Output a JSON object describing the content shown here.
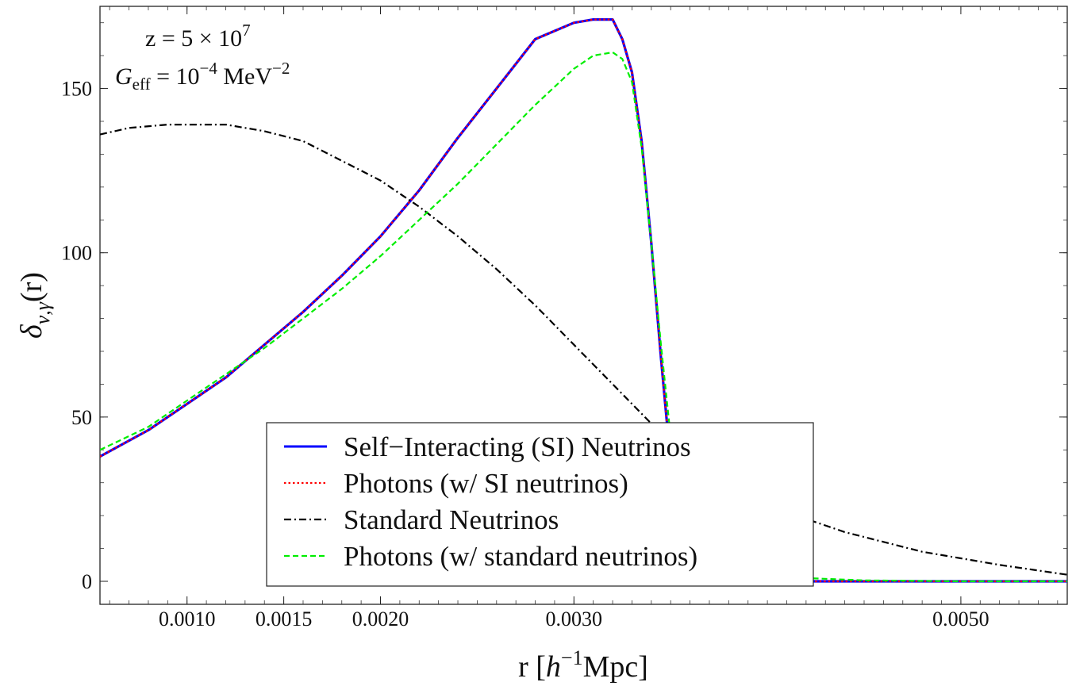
{
  "chart_data": {
    "type": "line",
    "xlabel": {
      "base": "r [",
      "italic": "h",
      "sup": "−1",
      "tail": "Mpc]"
    },
    "ylabel": {
      "main": "δ",
      "sub": "ν,γ",
      "tail": "(r)"
    },
    "xlim": [
      0.00055,
      0.00555
    ],
    "ylim": [
      -7,
      175
    ],
    "x_ticks": [
      {
        "value": 0.001,
        "label": "0.0010"
      },
      {
        "value": 0.0015,
        "label": "0.0015"
      },
      {
        "value": 0.002,
        "label": "0.0020"
      },
      {
        "value": 0.003,
        "label": "0.0030"
      },
      {
        "value": 0.005,
        "label": "0.0050"
      }
    ],
    "x_minor_step": 0.0001,
    "y_ticks": [
      {
        "value": 0,
        "label": "0"
      },
      {
        "value": 50,
        "label": "50"
      },
      {
        "value": 100,
        "label": "100"
      },
      {
        "value": 150,
        "label": "150"
      }
    ],
    "y_minor_step": 10,
    "annotations": {
      "line1": {
        "text": "z = 5 × 10",
        "sup": "7"
      },
      "line2": {
        "italic": "G",
        "sub": "eff",
        "text": " = 10",
        "sup": "−4",
        "tail": " MeV",
        "sup2": "−2"
      }
    },
    "legend_position": "bottom-center",
    "series": [
      {
        "name": "Self−Interacting (SI) Neutrinos",
        "color": "#0000ff",
        "style": "solid",
        "x": [
          0.00055,
          0.0008,
          0.001,
          0.0012,
          0.0014,
          0.0016,
          0.0018,
          0.002,
          0.0022,
          0.0024,
          0.0026,
          0.0028,
          0.003,
          0.0031,
          0.0032,
          0.00325,
          0.0033,
          0.00335,
          0.0034,
          0.00345,
          0.0035,
          0.00355,
          0.0036,
          0.00365,
          0.0037,
          0.0038,
          0.004,
          0.0045,
          0.005,
          0.00555
        ],
        "y": [
          38,
          46,
          54,
          62,
          72,
          82,
          93,
          105,
          119,
          135,
          150,
          165,
          170,
          171,
          171,
          165,
          155,
          134,
          103,
          68,
          36,
          15,
          5,
          1.5,
          0.3,
          0,
          0,
          0,
          0,
          0
        ]
      },
      {
        "name": "Photons (w/ SI neutrinos)",
        "color": "#ff0000",
        "style": "dotted",
        "x": [
          0.00055,
          0.0008,
          0.001,
          0.0012,
          0.0014,
          0.0016,
          0.0018,
          0.002,
          0.0022,
          0.0024,
          0.0026,
          0.0028,
          0.003,
          0.0031,
          0.0032,
          0.00325,
          0.0033,
          0.00335,
          0.0034,
          0.00345,
          0.0035,
          0.00355,
          0.0036,
          0.00365,
          0.0037,
          0.0038,
          0.004,
          0.0045,
          0.005,
          0.00555
        ],
        "y": [
          38,
          46,
          54,
          62,
          72,
          82,
          93,
          105,
          119,
          135,
          150,
          165,
          170,
          171,
          171,
          165,
          155,
          134,
          103,
          68,
          36,
          15,
          5,
          1.5,
          0.3,
          0,
          0,
          0,
          0,
          0
        ]
      },
      {
        "name": "Standard Neutrinos",
        "color": "#000000",
        "style": "dashdot",
        "x": [
          0.00055,
          0.0007,
          0.0009,
          0.00105,
          0.0012,
          0.0014,
          0.0016,
          0.0018,
          0.002,
          0.0022,
          0.0024,
          0.0026,
          0.0028,
          0.003,
          0.0032,
          0.0034,
          0.0036,
          0.0038,
          0.004,
          0.0042,
          0.0044,
          0.0046,
          0.0048,
          0.005,
          0.0052,
          0.00555
        ],
        "y": [
          136,
          138,
          139,
          139,
          139,
          137,
          134,
          128,
          122,
          114,
          105,
          95,
          84,
          72,
          60,
          48,
          38,
          30,
          24,
          19,
          15,
          12,
          9,
          7,
          5,
          2
        ]
      },
      {
        "name": "Photons (w/ standard neutrinos)",
        "color": "#00ee00",
        "style": "dashed",
        "x": [
          0.00055,
          0.0008,
          0.001,
          0.0012,
          0.0014,
          0.0016,
          0.0018,
          0.002,
          0.0022,
          0.0024,
          0.0026,
          0.0028,
          0.003,
          0.0031,
          0.0032,
          0.00325,
          0.0033,
          0.00335,
          0.0034,
          0.00345,
          0.0035,
          0.00355,
          0.0036,
          0.0037,
          0.0038,
          0.004,
          0.0042,
          0.0045,
          0.005,
          0.00555
        ],
        "y": [
          40,
          47,
          55,
          63,
          71,
          80,
          89,
          99,
          110,
          121,
          133,
          145,
          156,
          160,
          161,
          159,
          152,
          132,
          103,
          72,
          44,
          25,
          15,
          8,
          5,
          2.5,
          1,
          0.3,
          0,
          0
        ]
      }
    ]
  }
}
